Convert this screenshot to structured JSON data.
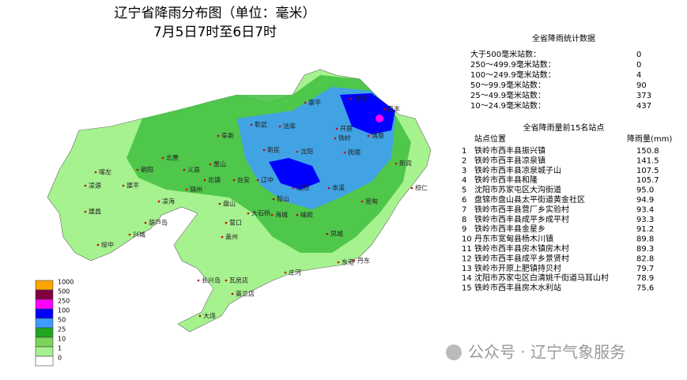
{
  "title": {
    "line1": "辽宁省降雨分布图（单位：毫米）",
    "line2": "7月5日7时至6日7时"
  },
  "stats": {
    "title": "全省降雨统计数据",
    "rows": [
      [
        "大于500毫米站数：",
        "0"
      ],
      [
        "250～499.9毫米站数：",
        "0"
      ],
      [
        "100～249.9毫米站数：",
        "4"
      ],
      [
        "50～99.9毫米站数：",
        "90"
      ],
      [
        "25～49.9毫米站数：",
        "373"
      ],
      [
        "10～24.9毫米站数：",
        "437"
      ]
    ]
  },
  "top15": {
    "title": "全省降雨量前15名站点",
    "headers": [
      "站点位置",
      "降雨量(mm)"
    ],
    "rows": [
      [
        "1",
        "铁岭市西丰县振兴镇",
        "150.8"
      ],
      [
        "2",
        "铁岭市西丰县凉泉镇",
        "141.5"
      ],
      [
        "3",
        "铁岭市西丰县凉泉城子山",
        "107.5"
      ],
      [
        "4",
        "铁岭市西丰县和隆",
        "105.7"
      ],
      [
        "5",
        "沈阳市苏家屯区大沟街道",
        "95.0"
      ],
      [
        "6",
        "盘锦市盘山县太平街道黄金社区",
        "94.9"
      ],
      [
        "7",
        "铁岭市西丰县营厂乡实验村",
        "93.4"
      ],
      [
        "8",
        "铁岭市西丰县成平乡成平村",
        "93.3"
      ],
      [
        "9",
        "铁岭市西丰县金星乡",
        "91.2"
      ],
      [
        "10",
        "丹东市宽甸县杨木川镇",
        "89.8"
      ],
      [
        "11",
        "铁岭市西丰县房木镇房木村",
        "89.3"
      ],
      [
        "12",
        "铁岭市西丰县成平乡景贤村",
        "82.8"
      ],
      [
        "13",
        "铁岭市开原上肥镇持贝村",
        "79.7"
      ],
      [
        "14",
        "沈阳市苏家屯区白清姚千街道马耳山村",
        "78.9"
      ],
      [
        "15",
        "铁岭市西丰县房木水利站",
        "75.6"
      ]
    ]
  },
  "legend": [
    {
      "label": "1000",
      "color": "#ffa500"
    },
    {
      "label": "500",
      "color": "#800040"
    },
    {
      "label": "250",
      "color": "#ff00ff"
    },
    {
      "label": "100",
      "color": "#0000ff"
    },
    {
      "label": "50",
      "color": "#3e9cff"
    },
    {
      "label": "25",
      "color": "#1fa61f"
    },
    {
      "label": "10",
      "color": "#7ed35a"
    },
    {
      "label": "1",
      "color": "#a6f28f"
    },
    {
      "label": "0",
      "color": "#ffffff"
    }
  ],
  "map_labels": [
    "康平",
    "昌图",
    "西丰",
    "开原",
    "铁岭",
    "法库",
    "彰武",
    "阜新",
    "北票",
    "朝阳",
    "凌源",
    "建平",
    "喀左",
    "建昌",
    "义县",
    "北镇",
    "黑山",
    "新民",
    "沈阳",
    "抚顺",
    "清原",
    "新宾",
    "本溪",
    "桓仁",
    "辽中",
    "台安",
    "辽阳",
    "鞍山",
    "海城",
    "盘山",
    "锦州",
    "凌海",
    "葫芦岛",
    "兴城",
    "绥中",
    "营口",
    "盖州",
    "大石桥",
    "岫岩",
    "凤城",
    "宽甸",
    "丹东",
    "东港",
    "庄河",
    "普兰店",
    "瓦房店",
    "长兴岛",
    "大连"
  ],
  "watermark": "公众号 · 辽宁气象服务"
}
